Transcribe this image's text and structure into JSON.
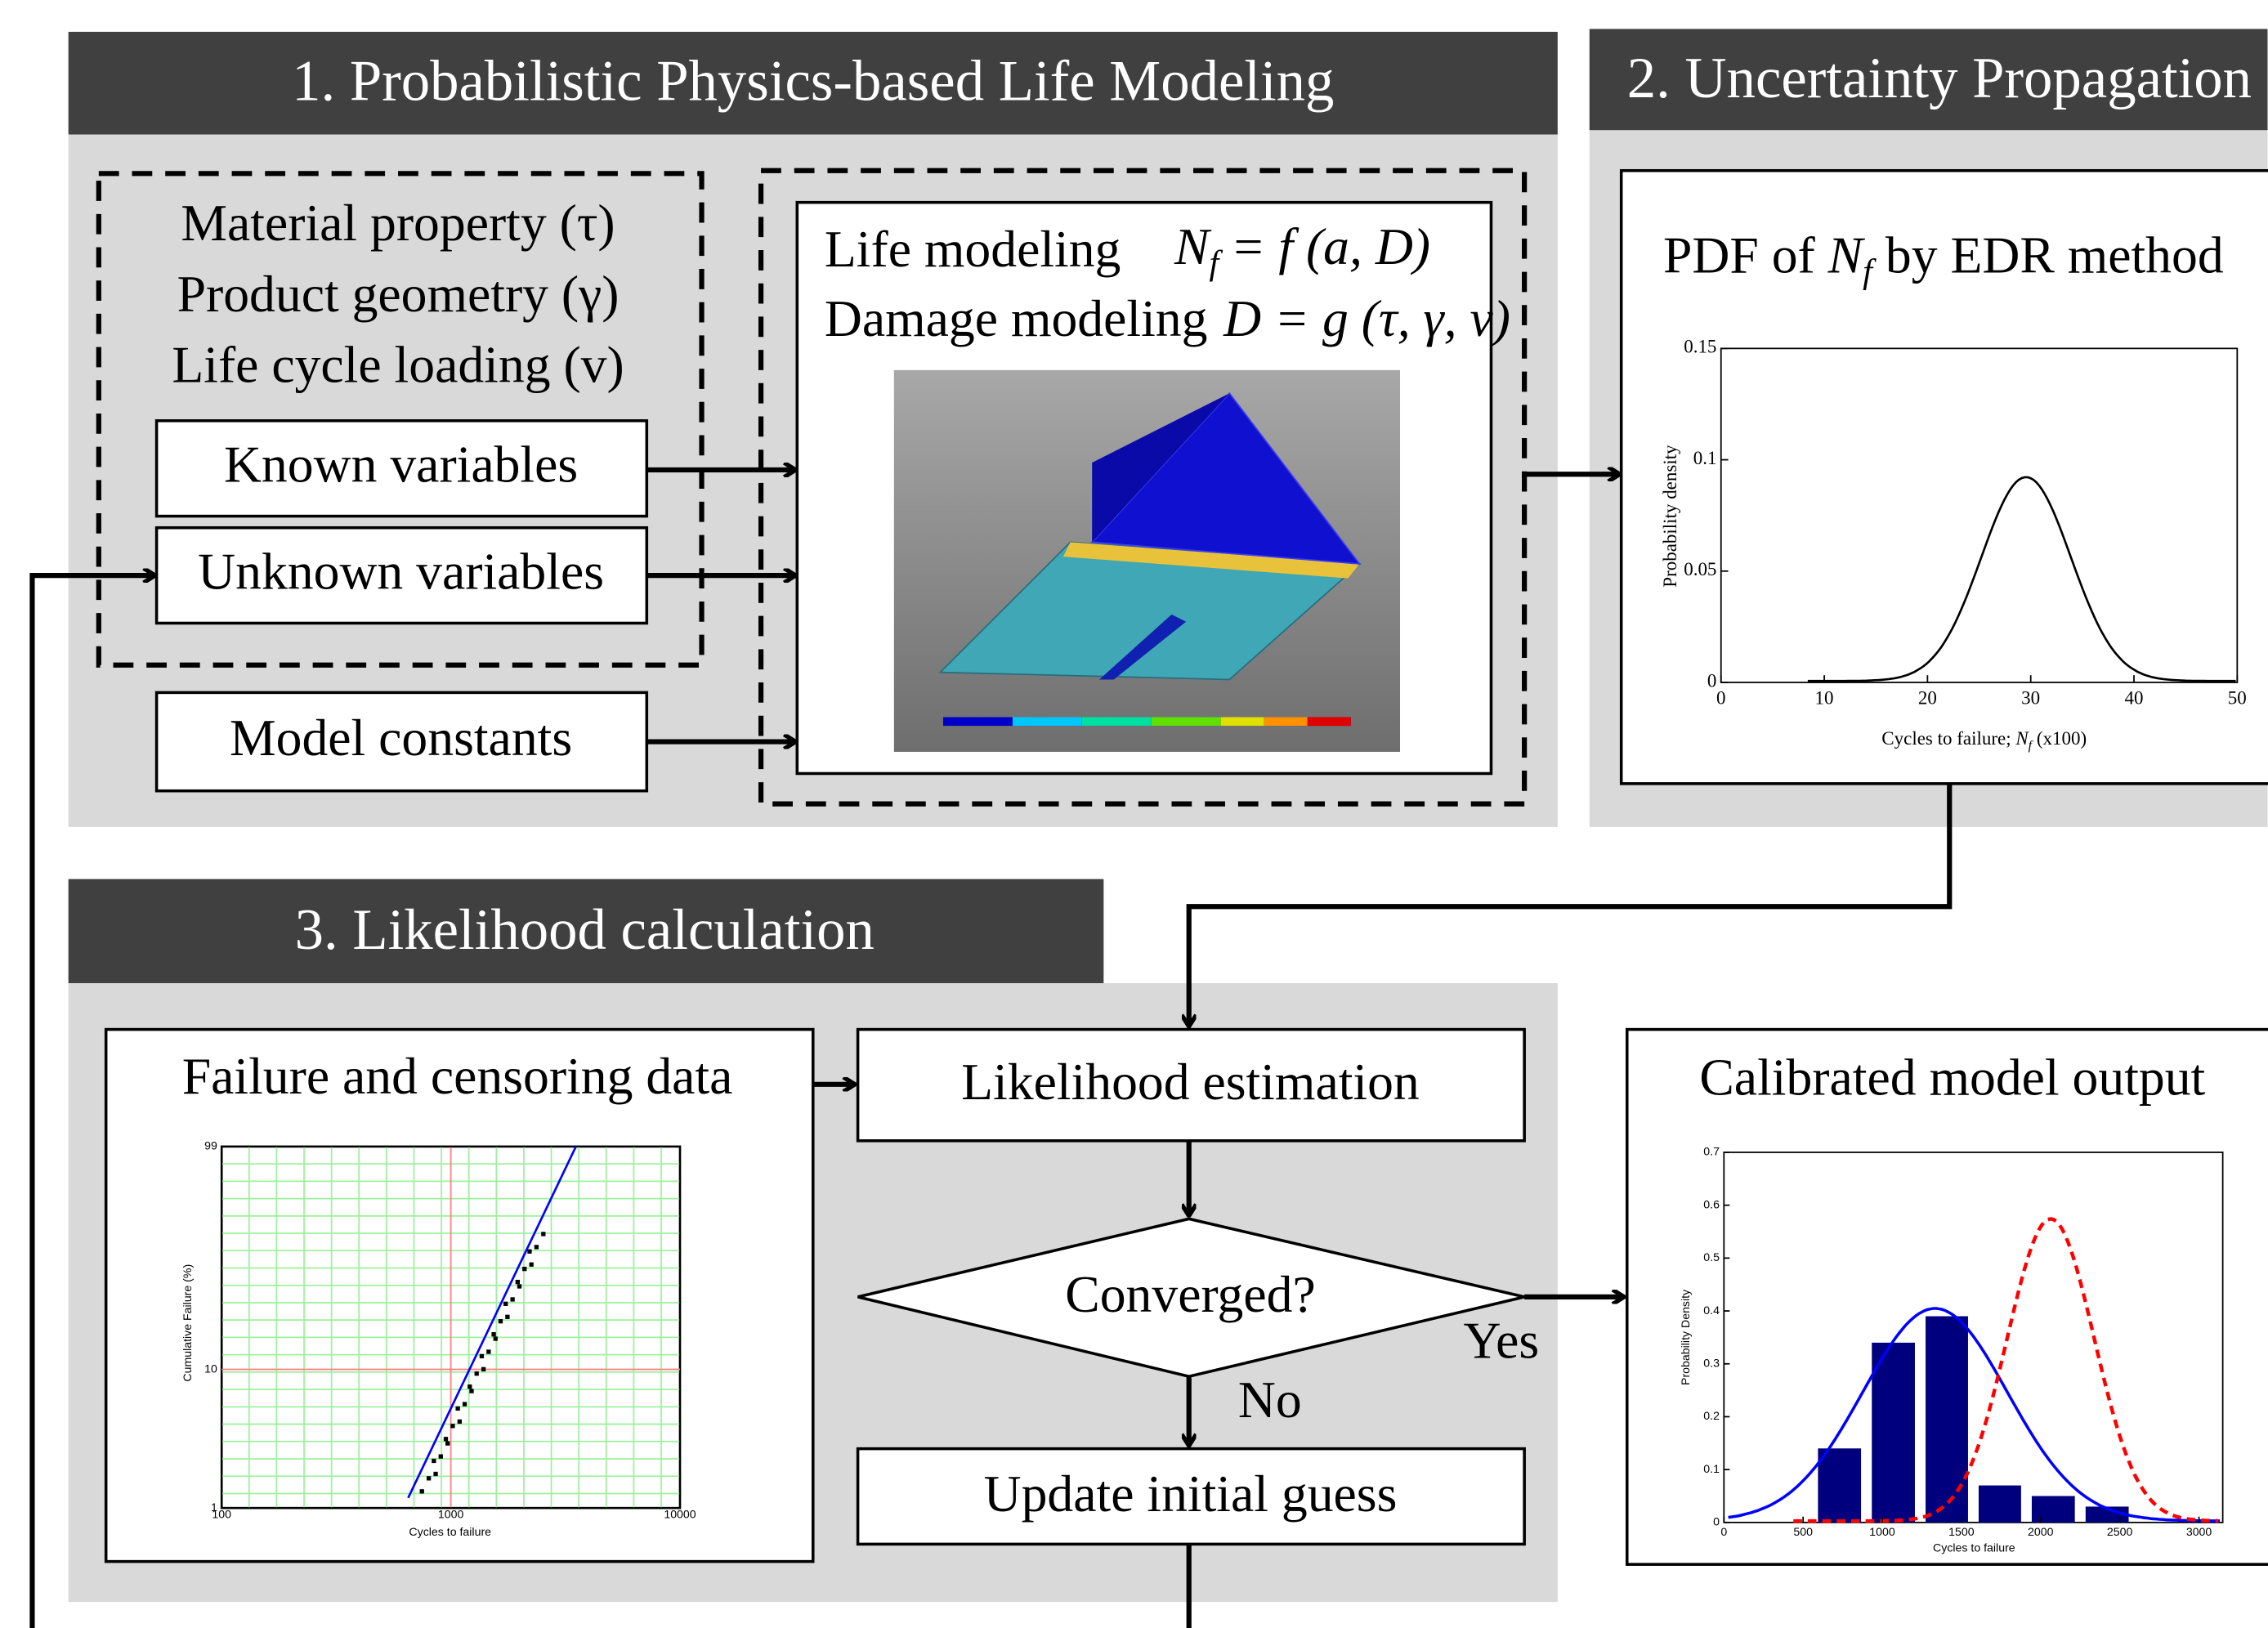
{
  "panels": [
    {
      "title": "1. Probabilistic Physics-based Life Modeling"
    },
    {
      "title": "2. Uncertainty Propagation"
    },
    {
      "title": "3. Likelihood calculation"
    }
  ],
  "inputs": {
    "lines": [
      "Material property (τ)",
      "Product geometry (γ)",
      "Life cycle loading (v)"
    ],
    "boxes": [
      "Known variables",
      "Unknown variables",
      "Model constants"
    ]
  },
  "model": {
    "life": {
      "label": "Life modeling",
      "lhs": "N",
      "sub": "f",
      "rhs": "= f (a, D)"
    },
    "damage": {
      "label": "Damage modeling",
      "formula": "D = g (τ, γ, ν)"
    }
  },
  "pdf_plot": {
    "title": {
      "before": "PDF of ",
      "var": "N",
      "sub": "f",
      "after": " by EDR method"
    },
    "xlim": [
      0,
      50
    ],
    "xticks": [
      0,
      10,
      20,
      30,
      40,
      50
    ],
    "ylim": [
      0,
      0.15
    ],
    "yticks": [
      0,
      0.05,
      0.1,
      0.15
    ],
    "ylabel": "Probability density",
    "xlabel": {
      "before": "Cycles to failure; ",
      "var": "N",
      "sub": "f",
      "after": " (x100)"
    }
  },
  "likelihood": {
    "data_title": "Failure and censoring data",
    "estimation": "Likelihood estimation",
    "decision": "Converged?",
    "yes": "Yes",
    "no": "No",
    "update": "Update initial guess"
  },
  "weibull_plot": {
    "xlim": [
      100,
      10000
    ],
    "xticks": [
      100,
      1000,
      10000
    ],
    "ylim": [
      1,
      99
    ],
    "yticks": [
      1,
      10,
      99
    ],
    "xlabel": "Cycles to failure",
    "ylabel": "Cumulative Failure (%)"
  },
  "output": {
    "title": "Calibrated model output",
    "xlim": [
      0,
      3150
    ],
    "xticks": [
      0,
      500,
      1000,
      1500,
      2000,
      2500,
      3000
    ],
    "ylim": [
      0,
      0.7
    ],
    "yticks": [
      0,
      0.1,
      0.2,
      0.3,
      0.4,
      0.5,
      0.6,
      0.7
    ],
    "bins": [
      560,
      900,
      1240,
      1575,
      1910,
      2250,
      2590
    ],
    "values": [
      0.14,
      0.34,
      0.39,
      0.07,
      0.05,
      0.03
    ],
    "color": "#00007f",
    "xlabel": "Cycles to failure",
    "ylabel": "Probability Density"
  }
}
